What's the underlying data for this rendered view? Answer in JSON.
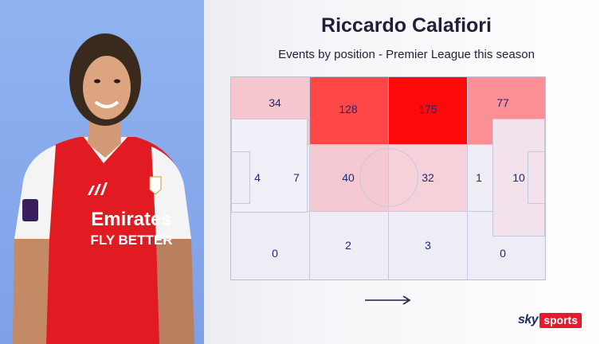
{
  "title": "Riccardo Calafiori",
  "subtitle": "Events by position - Premier League this season",
  "colors": {
    "panel": "#8fb3f0",
    "heat_high": "#ff0000",
    "heat_low": "#eeedf6",
    "label": "#1b2a78"
  },
  "grid": {
    "columns": 4,
    "rows": 3,
    "cells": [
      {
        "value": "34"
      },
      {
        "value": "128"
      },
      {
        "value": "175"
      },
      {
        "value": "77"
      },
      {
        "value": "40"
      },
      {
        "value": "32"
      },
      {
        "value": "0"
      },
      {
        "value": "2"
      },
      {
        "value": "3"
      },
      {
        "value": "0"
      }
    ],
    "boxes": [
      {
        "value": "4"
      },
      {
        "value": "7"
      },
      {
        "value": "1"
      },
      {
        "value": "10"
      }
    ]
  },
  "direction_icon": "arrow-right-icon",
  "brand": {
    "sky": "sky",
    "sports": "sports"
  },
  "player": {
    "shirt_sponsor_line1": "Emirates",
    "shirt_sponsor_line2": "FLY BETTER"
  }
}
